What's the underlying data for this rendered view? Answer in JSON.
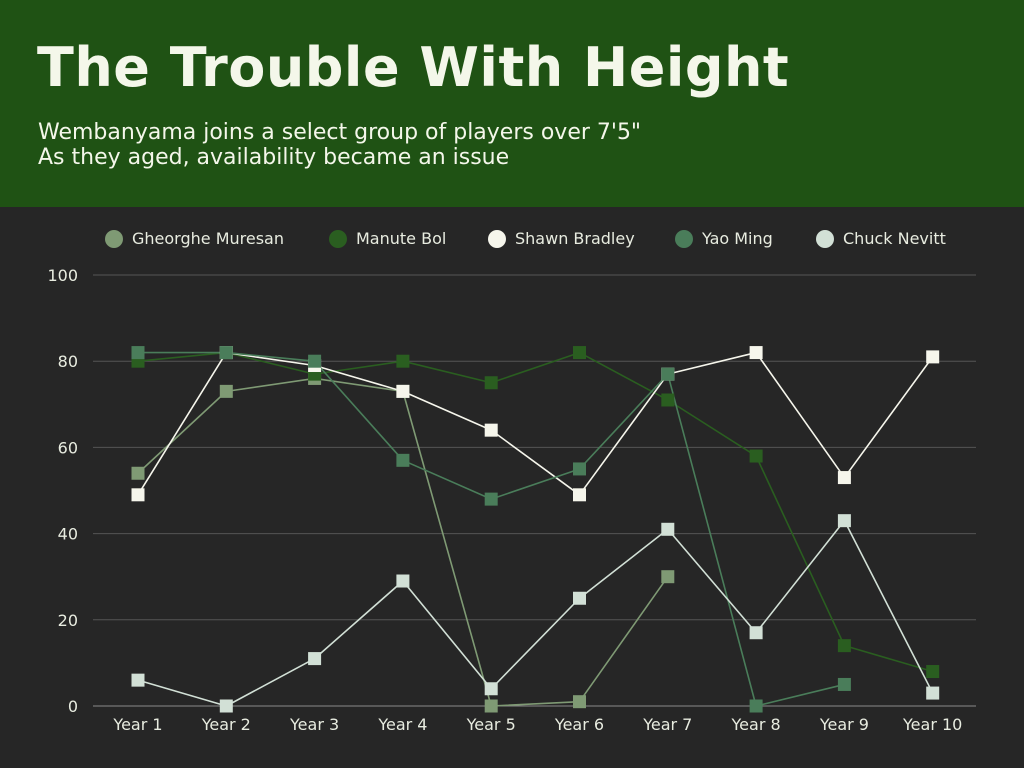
{
  "header": {
    "title": "The Trouble With Height",
    "subtitle_line1": "Wembanyama joins a select group of players over 7'5\"",
    "subtitle_line2": "As they aged, availability became an issue"
  },
  "colors": {
    "header_bg": "#1f5214",
    "page_bg": "#262626",
    "grid": "#555555",
    "tick_text": "#e8ece0"
  },
  "chart_data": {
    "type": "line",
    "title": "The Trouble With Height",
    "xlabel": "",
    "ylabel": "",
    "ylim": [
      0,
      100
    ],
    "yticks": [
      0,
      20,
      40,
      60,
      80,
      100
    ],
    "grid": true,
    "legend_position": "top",
    "categories": [
      "Year 1",
      "Year 2",
      "Year 3",
      "Year 4",
      "Year 5",
      "Year 6",
      "Year 7",
      "Year 8",
      "Year 9",
      "Year 10"
    ],
    "series": [
      {
        "name": "Gheorghe Muresan",
        "color": "#7f9a74",
        "values": [
          54,
          73,
          76,
          73,
          0,
          1,
          30,
          null,
          null,
          null
        ]
      },
      {
        "name": "Manute Bol",
        "color": "#2a5e20",
        "values": [
          80,
          82,
          77,
          80,
          75,
          82,
          71,
          58,
          14,
          8
        ]
      },
      {
        "name": "Shawn Bradley",
        "color": "#f6f6ec",
        "values": [
          49,
          82,
          79,
          73,
          64,
          49,
          77,
          82,
          53,
          81
        ]
      },
      {
        "name": "Yao Ming",
        "color": "#4a7d5a",
        "values": [
          82,
          82,
          80,
          57,
          48,
          55,
          77,
          0,
          5,
          null
        ]
      },
      {
        "name": "Chuck Nevitt",
        "color": "#d2e0d6",
        "values": [
          6,
          0,
          11,
          29,
          4,
          25,
          41,
          17,
          43,
          3
        ]
      }
    ]
  }
}
